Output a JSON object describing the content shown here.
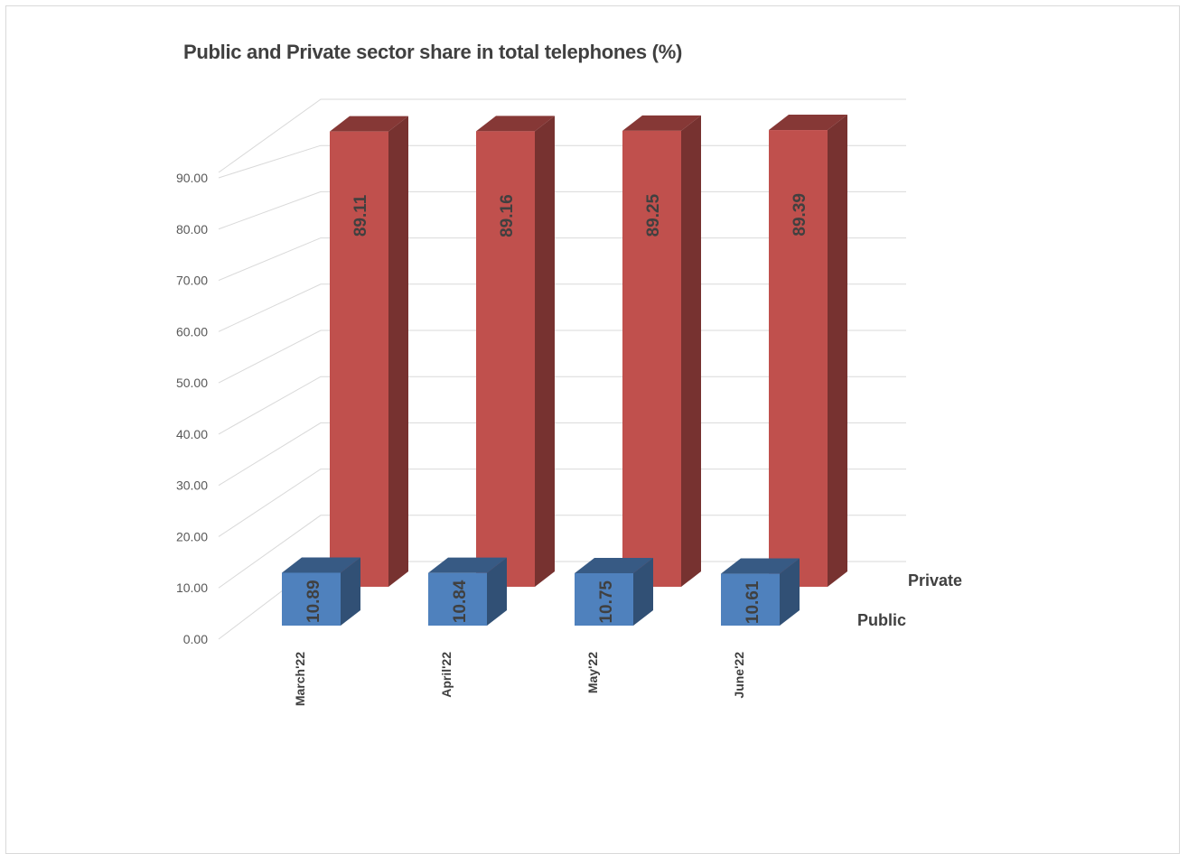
{
  "chart_data": {
    "type": "bar",
    "title": "Public and Private sector share in total telephones (%)",
    "categories": [
      "March'22",
      "April'22",
      "May'22",
      "June'22"
    ],
    "series": [
      {
        "name": "Public",
        "values": [
          10.89,
          10.84,
          10.75,
          10.61
        ],
        "color": "#4f81bd"
      },
      {
        "name": "Private",
        "values": [
          89.11,
          89.16,
          89.25,
          89.39
        ],
        "color": "#c0504d"
      }
    ],
    "value_labels": {
      "Public": [
        "10.89",
        "10.84",
        "10.75",
        "10.61"
      ],
      "Private": [
        "89.11",
        "89.16",
        "89.25",
        "89.39"
      ]
    },
    "y_ticks": [
      "0.00",
      "10.00",
      "20.00",
      "30.00",
      "40.00",
      "50.00",
      "60.00",
      "70.00",
      "80.00",
      "90.00"
    ],
    "ylim": [
      0,
      90
    ],
    "grid": true,
    "style": "3d-clustered-column"
  }
}
